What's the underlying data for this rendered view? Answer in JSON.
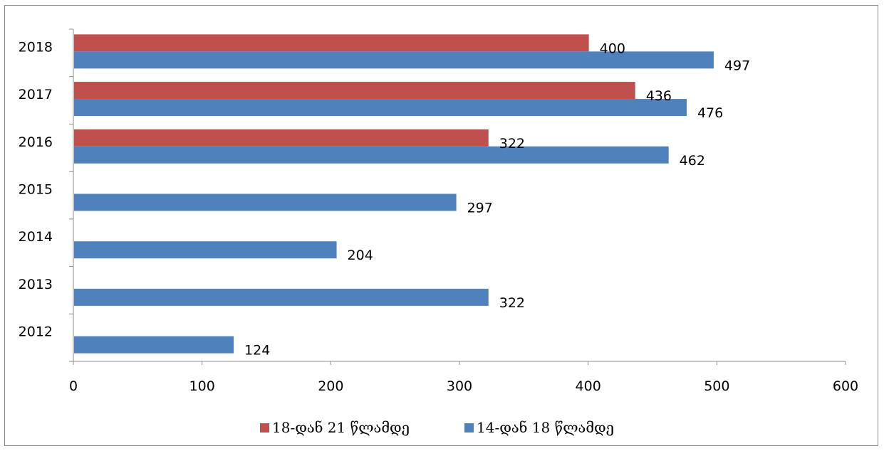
{
  "chart_data": {
    "type": "bar",
    "orientation": "horizontal",
    "categories": [
      "2012",
      "2013",
      "2014",
      "2015",
      "2016",
      "2017",
      "2018"
    ],
    "series": [
      {
        "name": "14-დან 18 წლამდე",
        "color": "#4f81bd",
        "values": [
          124,
          322,
          204,
          297,
          462,
          476,
          497
        ]
      },
      {
        "name": "18-დან 21 წლამდე",
        "color": "#c0504d",
        "values": [
          null,
          null,
          null,
          null,
          322,
          436,
          400
        ]
      }
    ],
    "x_ticks": [
      "0",
      "100",
      "200",
      "300",
      "400",
      "500",
      "600"
    ],
    "xlim": [
      0,
      600
    ],
    "grid": false,
    "legend_position": "bottom",
    "data_labels": true
  }
}
